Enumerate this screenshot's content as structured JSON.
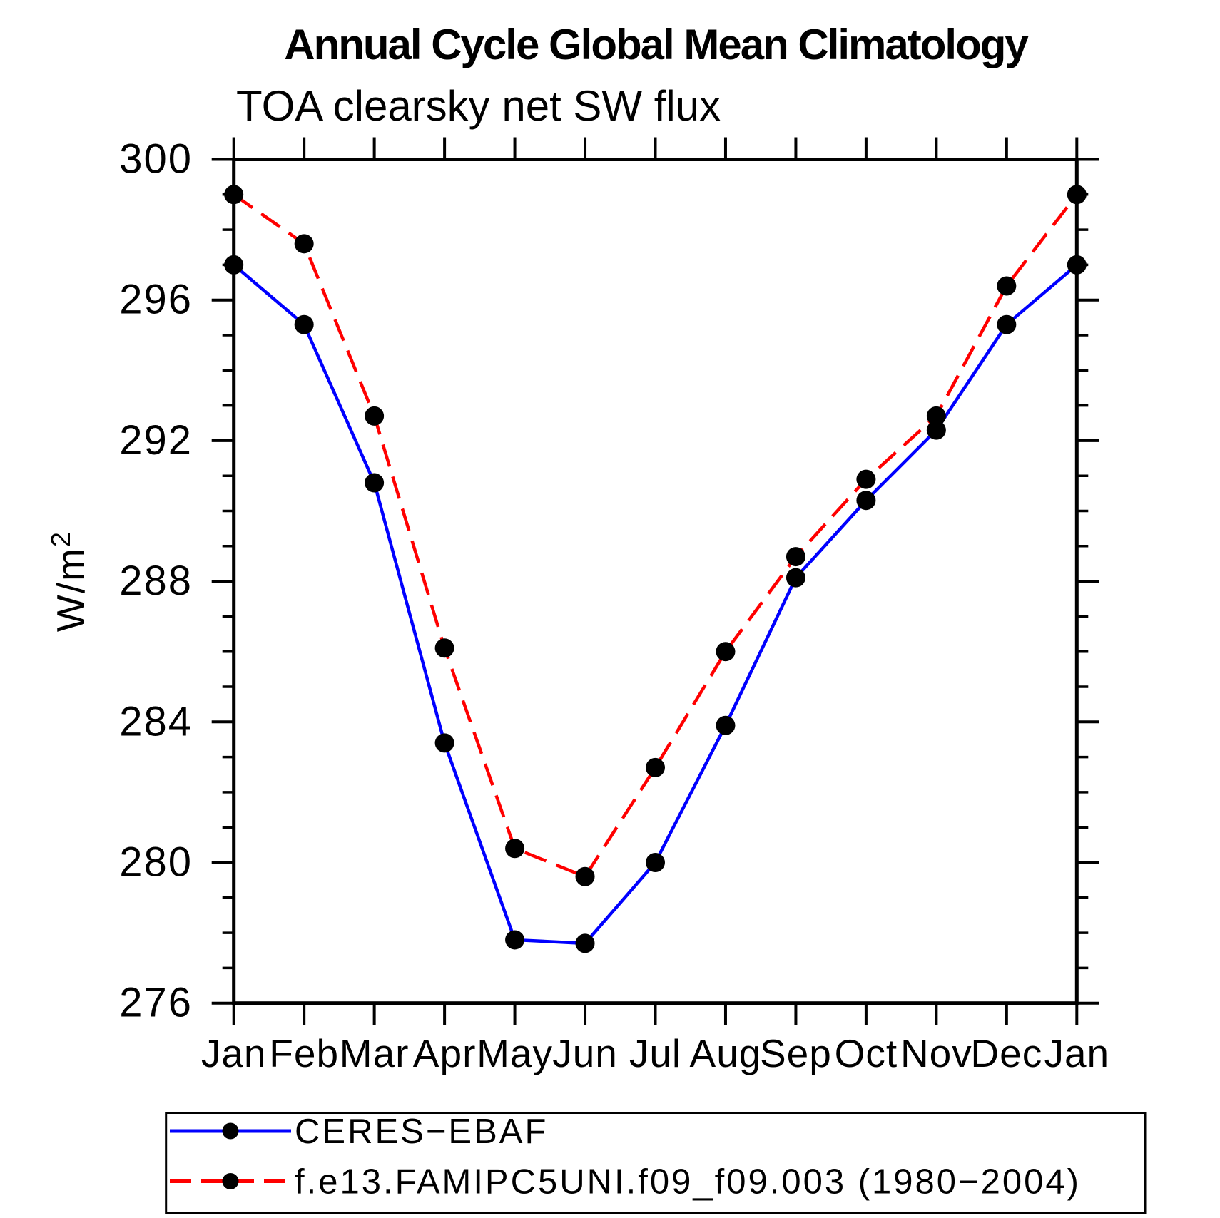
{
  "chart_data": {
    "type": "line",
    "title": "Annual Cycle Global Mean Climatology",
    "subtitle": "TOA clearsky net SW flux",
    "ylabel_base": "W/m",
    "ylabel_exp": "2",
    "x_categories": [
      "Jan",
      "Feb",
      "Mar",
      "Apr",
      "May",
      "Jun",
      "Jul",
      "Aug",
      "Sep",
      "Oct",
      "Nov",
      "Dec",
      "Jan"
    ],
    "ylim": [
      276,
      300
    ],
    "yticks": [
      276,
      280,
      284,
      288,
      292,
      296,
      300
    ],
    "y_minor_step": 1,
    "grid": false,
    "legend_position": "bottom",
    "marker_color": "#000000",
    "axis_color": "#000000",
    "series": [
      {
        "name": "CERES−EBAF",
        "color": "#0000ff",
        "style": "solid",
        "values": [
          297.0,
          295.3,
          290.8,
          283.4,
          277.8,
          277.7,
          280.0,
          283.9,
          288.1,
          290.3,
          292.3,
          295.3,
          297.0
        ]
      },
      {
        "name": "f.e13.FAMIPC5UNI.f09_f09.003 (1980−2004)",
        "color": "#ff0000",
        "style": "dashed",
        "values": [
          299.0,
          297.6,
          292.7,
          286.1,
          280.4,
          279.6,
          282.7,
          286.0,
          288.7,
          290.9,
          292.7,
          296.4,
          299.0
        ]
      }
    ]
  }
}
